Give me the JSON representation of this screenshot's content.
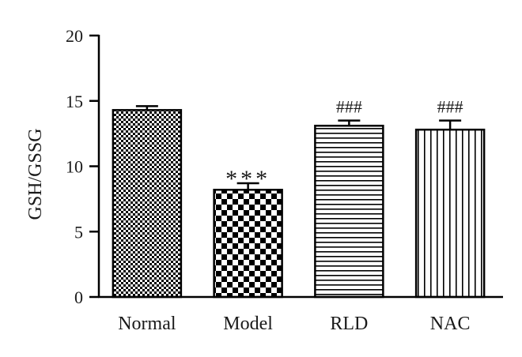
{
  "chart_data": {
    "type": "bar",
    "title": "",
    "xlabel": "",
    "ylabel": "GSH/GSSG",
    "ylim": [
      0,
      20
    ],
    "yticks": [
      0,
      5,
      10,
      15,
      20
    ],
    "categories": [
      "Normal",
      "Model",
      "RLD",
      "NAC"
    ],
    "values": [
      14.3,
      8.2,
      13.1,
      12.8
    ],
    "errors": [
      0.3,
      0.5,
      0.4,
      0.7
    ],
    "annotations": [
      "",
      "***",
      "###",
      "###"
    ],
    "patterns": [
      "fine-checker",
      "coarse-checker",
      "horizontal-lines",
      "vertical-lines"
    ],
    "grid": false,
    "legend": "none",
    "colors": {
      "bar_fill": "#ffffff",
      "bar_ink": "#000000",
      "axis": "#000000"
    }
  }
}
